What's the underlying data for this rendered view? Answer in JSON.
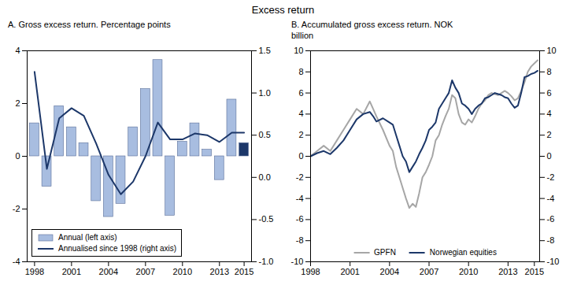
{
  "title": "Excess return",
  "chart_data": [
    {
      "type": "bar",
      "title": "A. Gross excess return. Percentage points",
      "x": [
        1998,
        1999,
        2000,
        2001,
        2002,
        2003,
        2004,
        2005,
        2006,
        2007,
        2008,
        2009,
        2010,
        2011,
        2012,
        2013,
        2014,
        2015
      ],
      "xlim": [
        1997.4,
        2015.6
      ],
      "xticks": [
        1998,
        2001,
        2004,
        2007,
        2010,
        2013,
        2015
      ],
      "ylim": [
        -4,
        4
      ],
      "yticks": [
        -4,
        -2,
        0,
        2,
        4
      ],
      "y2lim": [
        -1,
        1.5
      ],
      "y2ticks": [
        {
          "value": -1,
          "label": "-1.0"
        },
        -0.5,
        {
          "value": 0,
          "label": "0.0"
        },
        0.5,
        {
          "value": 1,
          "label": "1.0"
        },
        1.5
      ],
      "legend": "lower left",
      "series": [
        {
          "name": "Annual (left axis)",
          "type": "bar",
          "colors": [
            "#a8bde0",
            "#a8bde0",
            "#a8bde0",
            "#a8bde0",
            "#a8bde0",
            "#a8bde0",
            "#a8bde0",
            "#a8bde0",
            "#a8bde0",
            "#a8bde0",
            "#a8bde0",
            "#a8bde0",
            "#a8bde0",
            "#a8bde0",
            "#a8bde0",
            "#a8bde0",
            "#a8bde0",
            "#1c3769"
          ],
          "values": [
            1.25,
            -1.15,
            1.9,
            1.1,
            0.5,
            -1.7,
            -2.3,
            -1.8,
            1.1,
            2.55,
            3.65,
            -2.25,
            0.55,
            1.25,
            0.25,
            -0.9,
            2.15,
            0.5
          ]
        },
        {
          "name": "Annualised since 1998 (right axis)",
          "type": "line",
          "axis": "y2",
          "color": "#1c3769",
          "values": [
            1.25,
            0.1,
            0.7,
            0.82,
            0.73,
            0.4,
            0.03,
            -0.2,
            -0.05,
            0.25,
            0.65,
            0.45,
            0.45,
            0.52,
            0.5,
            0.42,
            0.53,
            0.53
          ]
        }
      ]
    },
    {
      "type": "line",
      "title": "B. Accumulated gross excess return. NOK billion",
      "x": [
        1998,
        1998.5,
        1999,
        1999.5,
        2000,
        2000.5,
        2001,
        2001.5,
        2002,
        2002.5,
        2002.75,
        2003,
        2003.5,
        2004,
        2004.25,
        2004.5,
        2004.75,
        2005,
        2005.25,
        2005.5,
        2005.75,
        2006,
        2006.25,
        2006.5,
        2006.75,
        2007,
        2007.25,
        2007.5,
        2007.75,
        2008,
        2008.25,
        2008.5,
        2008.75,
        2009,
        2009.25,
        2009.5,
        2009.75,
        2010,
        2010.25,
        2010.5,
        2010.75,
        2011,
        2011.25,
        2011.5,
        2011.75,
        2012,
        2012.25,
        2012.5,
        2012.75,
        2013,
        2013.25,
        2013.5,
        2013.75,
        2014,
        2014.25,
        2014.5,
        2014.75,
        2015,
        2015.25
      ],
      "xlim": [
        1998,
        2015.4
      ],
      "xticks": [
        1998,
        2001,
        2004,
        2007,
        2010,
        2013,
        2015
      ],
      "ylim": [
        -10,
        10
      ],
      "yticks": [
        -10,
        -8,
        -6,
        -4,
        -2,
        0,
        2,
        4,
        6,
        8,
        10
      ],
      "y2lim": [
        -10,
        10
      ],
      "y2ticks": [
        -10,
        -8,
        -6,
        -4,
        -2,
        0,
        2,
        4,
        6,
        8,
        10
      ],
      "legend": "lower center",
      "series": [
        {
          "name": "GPFN",
          "color": "#a6a6a6",
          "values": [
            0,
            0.5,
            1.0,
            0.5,
            1.5,
            2.5,
            3.5,
            4.5,
            4.0,
            5.2,
            4.5,
            3.8,
            2.5,
            1.0,
            0.5,
            -1.0,
            -2.0,
            -3.0,
            -4.0,
            -4.9,
            -4.5,
            -4.8,
            -3.5,
            -2.0,
            -1.5,
            -0.8,
            0.0,
            1.5,
            2.0,
            3.0,
            3.8,
            4.5,
            5.8,
            5.5,
            4.0,
            3.2,
            3.0,
            3.5,
            3.2,
            3.8,
            4.5,
            5.0,
            5.3,
            5.8,
            6.0,
            5.9,
            5.8,
            6.0,
            6.2,
            6.0,
            5.7,
            5.3,
            5.5,
            6.2,
            7.0,
            8.0,
            8.5,
            8.8,
            9.1
          ]
        },
        {
          "name": "Norwegian equities",
          "color": "#1c3769",
          "values": [
            0,
            0.3,
            0.5,
            0.2,
            0.8,
            1.5,
            2.5,
            3.5,
            4.0,
            4.2,
            3.8,
            3.3,
            3.6,
            3.2,
            3.0,
            2.0,
            1.0,
            0.0,
            -0.5,
            -1.5,
            -1.0,
            -0.5,
            0.2,
            0.8,
            1.5,
            2.5,
            2.8,
            3.2,
            4.5,
            5.0,
            5.5,
            6.0,
            7.2,
            6.5,
            6.0,
            5.0,
            4.8,
            4.5,
            4.0,
            4.5,
            4.8,
            5.0,
            5.5,
            5.6,
            5.8,
            6.0,
            5.9,
            5.8,
            5.6,
            5.5,
            5.0,
            4.6,
            4.8,
            6.0,
            7.5,
            7.6,
            7.8,
            7.9,
            8.1
          ]
        }
      ]
    }
  ]
}
